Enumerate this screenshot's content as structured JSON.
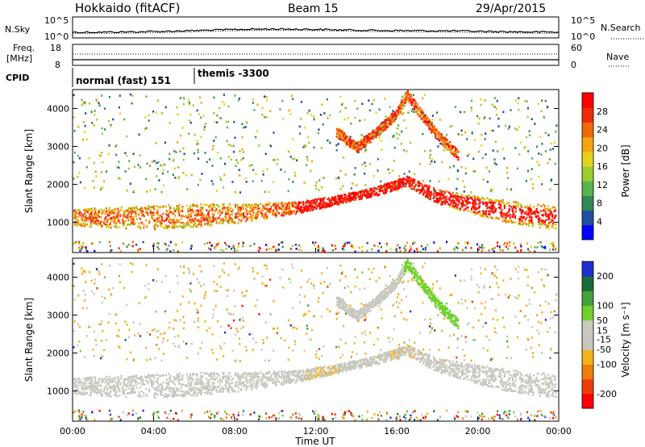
{
  "header": {
    "station": "Hokkaido (fitACF)",
    "beam": "Beam 15",
    "date": "29/Apr/2015"
  },
  "noise_panel": {
    "left_label": "N.Sky",
    "right_label": "N.Search",
    "ticks_left": [
      "10^5",
      "10^0"
    ],
    "ticks_right": [
      "10^5",
      "10^0"
    ]
  },
  "freq_panel": {
    "left_label_1": "Freq.",
    "left_label_2": "[MHz]",
    "ticks_left": [
      "18",
      "8"
    ],
    "ticks_right": [
      "60",
      "0"
    ],
    "right_label": "Nave"
  },
  "cpid_panel": {
    "label": "CPID",
    "segments": [
      {
        "start_hour": 0,
        "label": "normal (fast) 151"
      },
      {
        "start_hour": 6.1,
        "label": "themis -3300"
      }
    ]
  },
  "colors": {
    "power": [
      "#0000ff",
      "#1e4fa0",
      "#2f8a55",
      "#58b24d",
      "#9ccc2c",
      "#e6d21a",
      "#f4a40e",
      "#f06a0c",
      "#ee2a0a",
      "#ff0000"
    ],
    "velocity": [
      "#1f2fd1",
      "#1c6b3a",
      "#3fa33a",
      "#70d12c",
      "#c9c9c0",
      "#c6c6bd",
      "#f2b21c",
      "#f07d0c",
      "#ed3e0a",
      "#ff0000"
    ],
    "velocity_main": "#c8c8c0",
    "velocity_gs_band": "#f2b21c"
  },
  "chart_data": [
    {
      "type": "heatmap",
      "title": "Power",
      "xlabel": "",
      "ylabel": "Slant Range [km]",
      "xlim": [
        0,
        24
      ],
      "ylim": [
        200,
        4500
      ],
      "x_ticks": [],
      "y_ticks": [
        1000,
        2000,
        3000,
        4000
      ],
      "colorbar": {
        "label": "Power [dB]",
        "ticks": [
          4,
          8,
          12,
          16,
          20,
          24,
          28
        ],
        "range": [
          0,
          32
        ]
      },
      "features": [
        {
          "name": "main_band_center_km",
          "hours": [
            0,
            4,
            8,
            11,
            13,
            15,
            16.5,
            18,
            20,
            22,
            24
          ],
          "values": [
            1150,
            1150,
            1250,
            1400,
            1600,
            1850,
            2100,
            1700,
            1450,
            1250,
            1150
          ]
        },
        {
          "name": "upper_band_center_km",
          "hours": [
            13,
            14,
            15,
            16,
            16.5,
            17,
            18,
            19
          ],
          "values": [
            3400,
            3000,
            3400,
            3900,
            4400,
            4000,
            3300,
            2800
          ]
        }
      ]
    },
    {
      "type": "heatmap",
      "title": "Velocity",
      "xlabel": "Time UT",
      "ylabel": "Slant Range [km]",
      "xlim": [
        0,
        24
      ],
      "ylim": [
        200,
        4500
      ],
      "x_ticks": [
        "00:00",
        "04:00",
        "08:00",
        "12:00",
        "16:00",
        "20:00",
        "00:00"
      ],
      "y_ticks": [
        1000,
        2000,
        3000,
        4000
      ],
      "colorbar": {
        "label": "Velocity [m s⁻¹]",
        "ticks": [
          200,
          100,
          50,
          15,
          -15,
          -50,
          -100,
          -200
        ],
        "range": [
          -250,
          250
        ]
      }
    }
  ]
}
